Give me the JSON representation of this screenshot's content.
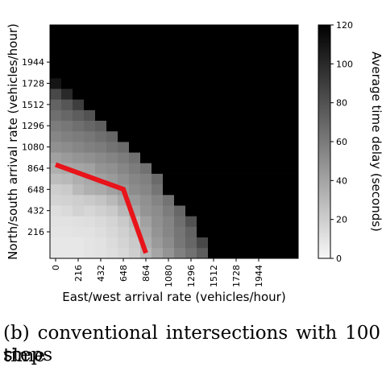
{
  "figure": {
    "caption_line1": "(b)  conventional  intersections  with  100  time",
    "caption_line2": "steps"
  },
  "chart_data": {
    "type": "heatmap",
    "title": "",
    "xlabel": "East/west arrival rate (vehicles/hour)",
    "ylabel": "North/south arrival rate (vehicles/hour)",
    "colorbar_label": "Average time delay (seconds)",
    "x_ticks": [
      0,
      216,
      432,
      648,
      864,
      1080,
      1296,
      1512,
      1728,
      1944
    ],
    "y_ticks": [
      216,
      432,
      648,
      864,
      1080,
      1296,
      1512,
      1728,
      1944
    ],
    "colorbar_ticks": [
      0,
      20,
      40,
      60,
      80,
      100,
      120
    ],
    "color_range": [
      0,
      120
    ],
    "colormap": "greys",
    "grid_steps": 22,
    "step_size": 108,
    "delay_values": [
      [
        8,
        8,
        8,
        9,
        10,
        12,
        15,
        20,
        30,
        40,
        48,
        58,
        65,
        75,
        120,
        120,
        120,
        120,
        120,
        120,
        120,
        120
      ],
      [
        8,
        8,
        8,
        9,
        10,
        13,
        17,
        22,
        35,
        45,
        52,
        62,
        70,
        85,
        120,
        120,
        120,
        120,
        120,
        120,
        120,
        120
      ],
      [
        9,
        9,
        10,
        10,
        12,
        15,
        19,
        25,
        38,
        48,
        55,
        63,
        72,
        120,
        120,
        120,
        120,
        120,
        120,
        120,
        120,
        120
      ],
      [
        10,
        10,
        11,
        12,
        14,
        17,
        22,
        30,
        42,
        50,
        56,
        66,
        80,
        120,
        120,
        120,
        120,
        120,
        120,
        120,
        120,
        120
      ],
      [
        12,
        14,
        18,
        16,
        19,
        22,
        30,
        40,
        48,
        52,
        60,
        70,
        120,
        120,
        120,
        120,
        120,
        120,
        120,
        120,
        120,
        120
      ],
      [
        17,
        18,
        20,
        22,
        25,
        30,
        38,
        45,
        50,
        56,
        64,
        120,
        120,
        120,
        120,
        120,
        120,
        120,
        120,
        120,
        120,
        120
      ],
      [
        20,
        22,
        30,
        35,
        37,
        42,
        46,
        52,
        55,
        63,
        120,
        120,
        120,
        120,
        120,
        120,
        120,
        120,
        120,
        120,
        120,
        120
      ],
      [
        28,
        30,
        35,
        38,
        42,
        45,
        50,
        55,
        58,
        68,
        120,
        120,
        120,
        120,
        120,
        120,
        120,
        120,
        120,
        120,
        120,
        120
      ],
      [
        35,
        38,
        40,
        42,
        48,
        50,
        55,
        60,
        65,
        120,
        120,
        120,
        120,
        120,
        120,
        120,
        120,
        120,
        120,
        120,
        120,
        120
      ],
      [
        42,
        45,
        48,
        50,
        53,
        56,
        60,
        65,
        120,
        120,
        120,
        120,
        120,
        120,
        120,
        120,
        120,
        120,
        120,
        120,
        120,
        120
      ],
      [
        50,
        52,
        55,
        58,
        60,
        64,
        68,
        120,
        120,
        120,
        120,
        120,
        120,
        120,
        120,
        120,
        120,
        120,
        120,
        120,
        120,
        120
      ],
      [
        55,
        58,
        60,
        62,
        66,
        70,
        120,
        120,
        120,
        120,
        120,
        120,
        120,
        120,
        120,
        120,
        120,
        120,
        120,
        120,
        120,
        120
      ],
      [
        60,
        62,
        66,
        70,
        74,
        120,
        120,
        120,
        120,
        120,
        120,
        120,
        120,
        120,
        120,
        120,
        120,
        120,
        120,
        120,
        120,
        120
      ],
      [
        66,
        70,
        75,
        80,
        120,
        120,
        120,
        120,
        120,
        120,
        120,
        120,
        120,
        120,
        120,
        120,
        120,
        120,
        120,
        120,
        120,
        120
      ],
      [
        72,
        78,
        90,
        120,
        120,
        120,
        120,
        120,
        120,
        120,
        120,
        120,
        120,
        120,
        120,
        120,
        120,
        120,
        120,
        120,
        120,
        120
      ],
      [
        85,
        100,
        120,
        120,
        120,
        120,
        120,
        120,
        120,
        120,
        120,
        120,
        120,
        120,
        120,
        120,
        120,
        120,
        120,
        120,
        120,
        120
      ],
      [
        110,
        120,
        120,
        120,
        120,
        120,
        120,
        120,
        120,
        120,
        120,
        120,
        120,
        120,
        120,
        120,
        120,
        120,
        120,
        120,
        120,
        120
      ],
      [
        120,
        120,
        120,
        120,
        120,
        120,
        120,
        120,
        120,
        120,
        120,
        120,
        120,
        120,
        120,
        120,
        120,
        120,
        120,
        120,
        120,
        120
      ],
      [
        120,
        120,
        120,
        120,
        120,
        120,
        120,
        120,
        120,
        120,
        120,
        120,
        120,
        120,
        120,
        120,
        120,
        120,
        120,
        120,
        120,
        120
      ],
      [
        120,
        120,
        120,
        120,
        120,
        120,
        120,
        120,
        120,
        120,
        120,
        120,
        120,
        120,
        120,
        120,
        120,
        120,
        120,
        120,
        120,
        120
      ],
      [
        120,
        120,
        120,
        120,
        120,
        120,
        120,
        120,
        120,
        120,
        120,
        120,
        120,
        120,
        120,
        120,
        120,
        120,
        120,
        120,
        120,
        120
      ],
      [
        120,
        120,
        120,
        120,
        120,
        120,
        120,
        120,
        120,
        120,
        120,
        120,
        120,
        120,
        120,
        120,
        120,
        120,
        120,
        120,
        120,
        120
      ]
    ],
    "boundary_line": {
      "color": "#e8141a",
      "points": [
        [
          0,
          900
        ],
        [
          648,
          650
        ],
        [
          864,
          0
        ]
      ]
    }
  }
}
